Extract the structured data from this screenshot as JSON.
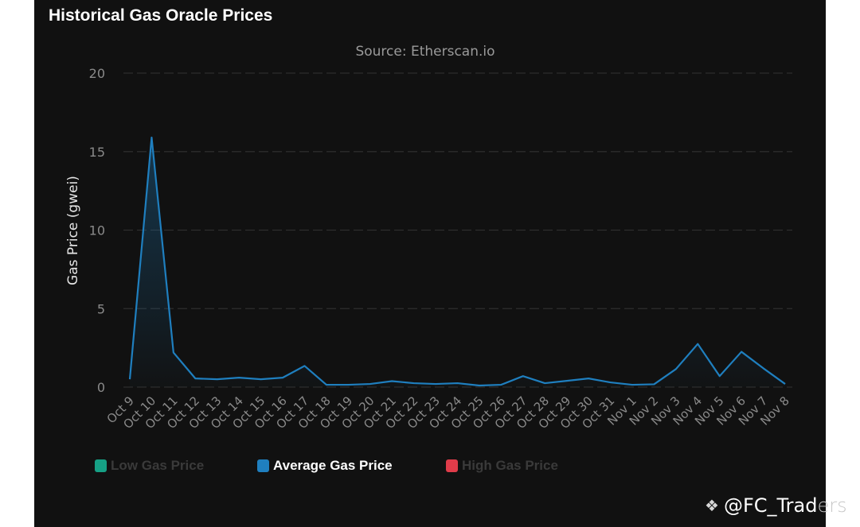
{
  "header": {
    "title": "Historical Gas Oracle Prices"
  },
  "watermark": {
    "icon": "binance-logo-icon",
    "handle_main": "@FC_Trad",
    "handle_tail": "ers"
  },
  "chart_data": {
    "type": "line",
    "title": "Historical Gas Oracle Prices",
    "subtitle": "Source: Etherscan.io",
    "xlabel": "",
    "ylabel": "Gas Price (gwei)",
    "ylim": [
      0,
      20
    ],
    "yticks": [
      0,
      5,
      10,
      15,
      20
    ],
    "grid": true,
    "legend_position": "bottom-left",
    "categories": [
      "Oct 9",
      "Oct 10",
      "Oct 11",
      "Oct 12",
      "Oct 13",
      "Oct 14",
      "Oct 15",
      "Oct 16",
      "Oct 17",
      "Oct 18",
      "Oct 19",
      "Oct 20",
      "Oct 21",
      "Oct 22",
      "Oct 23",
      "Oct 24",
      "Oct 25",
      "Oct 26",
      "Oct 27",
      "Oct 28",
      "Oct 29",
      "Oct 30",
      "Oct 31",
      "Nov 1",
      "Nov 2",
      "Nov 3",
      "Nov 4",
      "Nov 5",
      "Nov 6",
      "Nov 7",
      "Nov 8"
    ],
    "series": [
      {
        "name": "Low Gas Price",
        "color": "#16a085",
        "visible": false,
        "values": []
      },
      {
        "name": "Average Gas Price",
        "color": "#1f7fbf",
        "visible": true,
        "values": [
          0.5,
          15.9,
          2.2,
          0.55,
          0.5,
          0.6,
          0.5,
          0.6,
          1.35,
          0.15,
          0.15,
          0.2,
          0.38,
          0.25,
          0.2,
          0.25,
          0.1,
          0.15,
          0.7,
          0.25,
          0.4,
          0.55,
          0.3,
          0.15,
          0.18,
          1.15,
          2.75,
          0.7,
          2.25,
          1.2,
          0.2
        ]
      },
      {
        "name": "High Gas Price",
        "color": "#e03c4a",
        "visible": false,
        "values": []
      }
    ]
  }
}
